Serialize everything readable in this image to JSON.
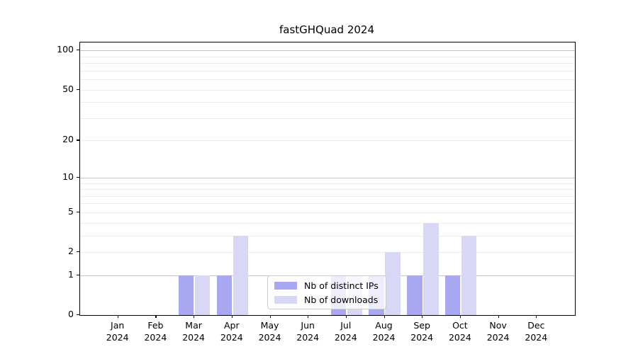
{
  "title": "fastGHQuad 2024",
  "colors": {
    "bar_distinct_ips": "#a7a7f2",
    "bar_downloads": "#d8d8f6",
    "grid_major": "#c6c6c6",
    "grid_minor": "#ececec",
    "axis": "#000000",
    "legend_border": "#cccccc",
    "background": "#ffffff"
  },
  "legend": {
    "entries": [
      {
        "label": "Nb of distinct IPs",
        "color": "#a7a7f2"
      },
      {
        "label": "Nb of downloads",
        "color": "#d8d8f6"
      }
    ]
  },
  "chart_data": {
    "type": "bar",
    "title": "fastGHQuad 2024",
    "xlabel": "",
    "ylabel": "",
    "categories": [
      "Jan 2024",
      "Feb 2024",
      "Mar 2024",
      "Apr 2024",
      "May 2024",
      "Jun 2024",
      "Jul 2024",
      "Aug 2024",
      "Sep 2024",
      "Oct 2024",
      "Nov 2024",
      "Dec 2024"
    ],
    "x_tick_line1": [
      "Jan",
      "Feb",
      "Mar",
      "Apr",
      "May",
      "Jun",
      "Jul",
      "Aug",
      "Sep",
      "Oct",
      "Nov",
      "Dec"
    ],
    "x_tick_line2": "2024",
    "series": [
      {
        "name": "Nb of distinct IPs",
        "color": "#a7a7f2",
        "values": [
          0,
          0,
          1,
          1,
          0,
          0,
          1,
          1,
          1,
          1,
          0,
          0
        ]
      },
      {
        "name": "Nb of downloads",
        "color": "#d8d8f6",
        "values": [
          0,
          0,
          1,
          3,
          0,
          0,
          1,
          2,
          4,
          3,
          0,
          0
        ]
      }
    ],
    "yscale": "log1p",
    "ylim": [
      0,
      115
    ],
    "y_ticks": [
      0,
      1,
      2,
      5,
      10,
      20,
      50,
      100
    ],
    "y_major_gridlines": [
      1,
      10,
      100
    ],
    "y_minor_gridlines": [
      2,
      3,
      4,
      5,
      6,
      7,
      8,
      9,
      20,
      30,
      40,
      50,
      60,
      70,
      80,
      90
    ],
    "grid": true,
    "legend_position": "lower-center-inside"
  }
}
